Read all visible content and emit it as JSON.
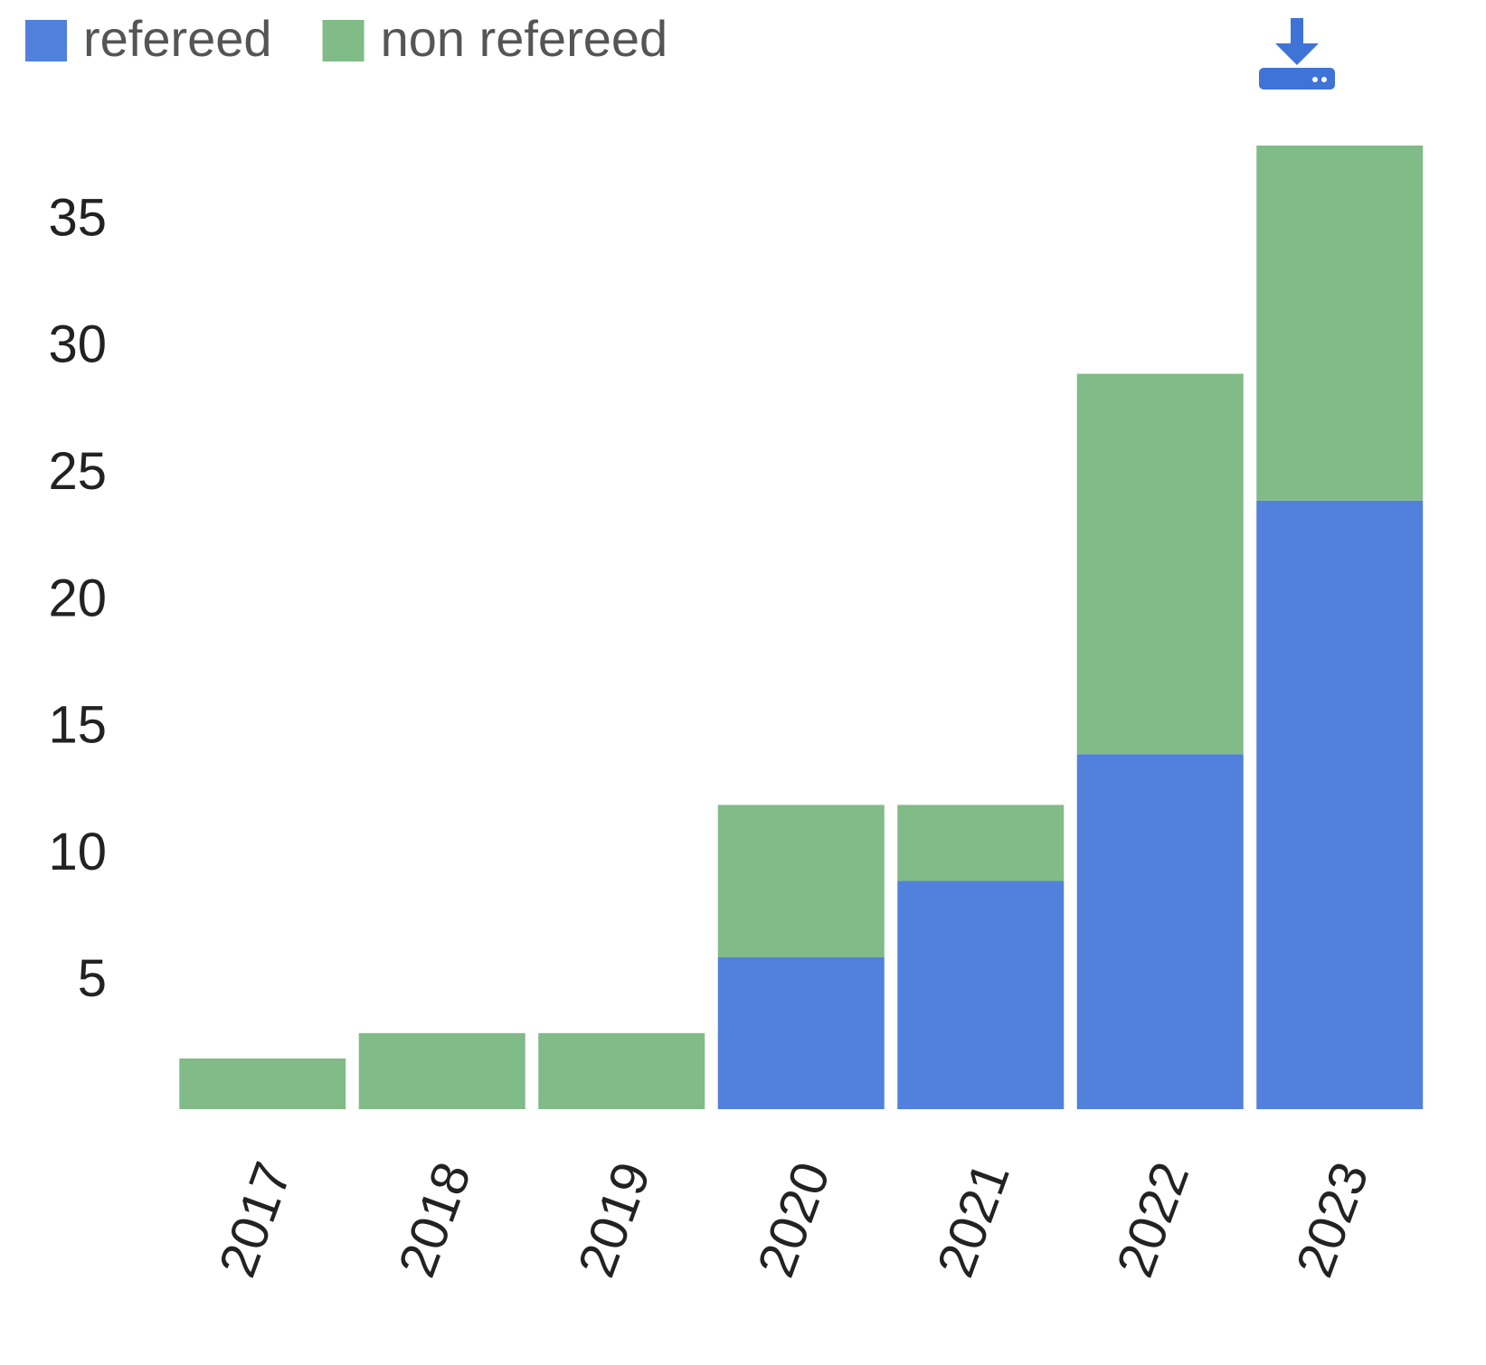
{
  "chart_data": {
    "type": "stacked_bar",
    "categories": [
      "2017",
      "2018",
      "2019",
      "2020",
      "2021",
      "2022",
      "2023"
    ],
    "series": [
      {
        "name": "refereed",
        "color": "#5181dc",
        "values": [
          0,
          0,
          0,
          6,
          9,
          14,
          24
        ]
      },
      {
        "name": "non refereed",
        "color": "#81bb87",
        "values": [
          2,
          3,
          3,
          6,
          3,
          15,
          14
        ]
      }
    ],
    "ylim": [
      0,
      38
    ],
    "yticks": [
      5,
      10,
      15,
      20,
      25,
      30,
      35
    ],
    "grid": false,
    "legend": "top-left"
  }
}
